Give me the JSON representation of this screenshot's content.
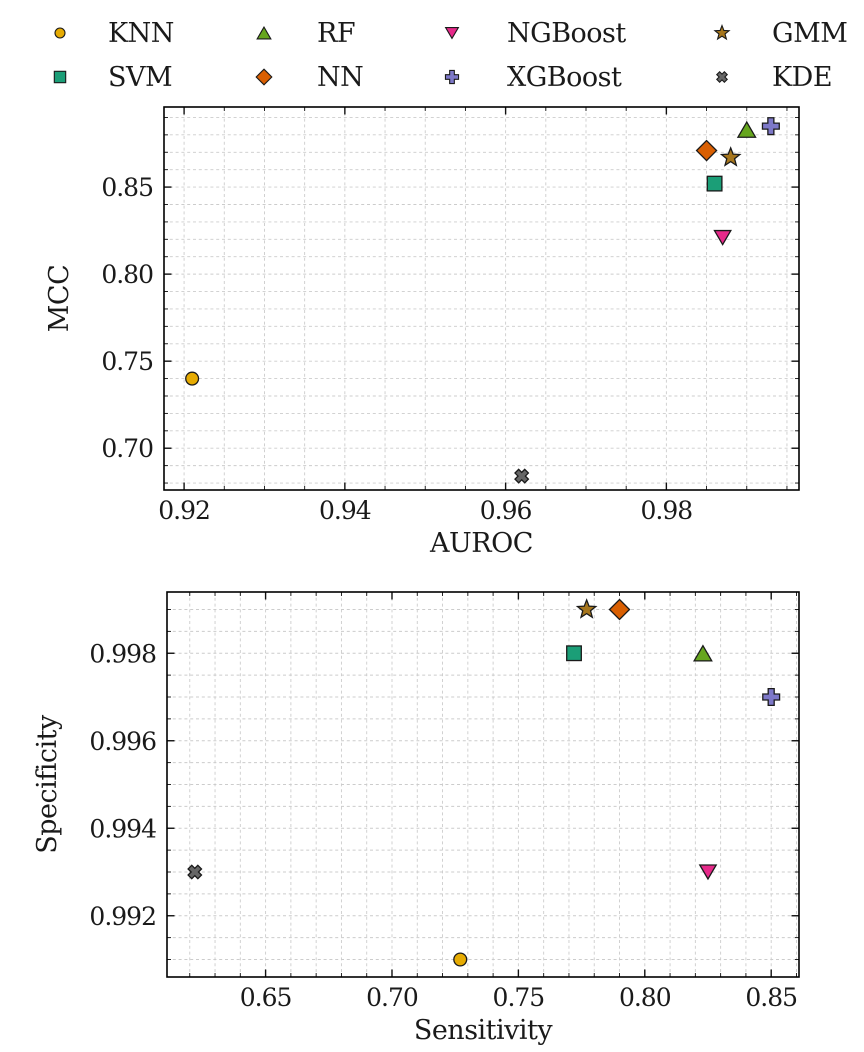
{
  "figure": {
    "background_color": "#ffffff",
    "text_color": "#1a1a1a",
    "grid_color": "#cccccc",
    "axis_border_color": "#000000",
    "marker_edge_color": "#1a1a1a"
  },
  "legend": {
    "position": "top",
    "items": [
      {
        "label": "KNN",
        "marker": "circle",
        "color": "#E6AB02"
      },
      {
        "label": "SVM",
        "marker": "square",
        "color": "#1B9E77"
      },
      {
        "label": "RF",
        "marker": "triangle-up",
        "color": "#66A61E"
      },
      {
        "label": "NN",
        "marker": "diamond",
        "color": "#D95F02"
      },
      {
        "label": "NGBoost",
        "marker": "triangle-down",
        "color": "#E7298A"
      },
      {
        "label": "XGBoost",
        "marker": "plus",
        "color": "#7D78C8"
      },
      {
        "label": "GMM",
        "marker": "star",
        "color": "#A6761D"
      },
      {
        "label": "KDE",
        "marker": "x",
        "color": "#666666"
      }
    ]
  },
  "chart_data": [
    {
      "type": "scatter",
      "xlabel": "AUROC",
      "ylabel": "MCC",
      "xlim": [
        0.9175,
        0.9965
      ],
      "ylim": [
        0.676,
        0.896
      ],
      "xticks": [
        0.92,
        0.94,
        0.96,
        0.98
      ],
      "xtick_labels": [
        "0.92",
        "0.94",
        "0.96",
        "0.98"
      ],
      "yticks": [
        0.7,
        0.75,
        0.8,
        0.85
      ],
      "ytick_labels": [
        "0.70",
        "0.75",
        "0.80",
        "0.85"
      ],
      "x_minor_step": 0.005,
      "y_minor_step": 0.01,
      "grid": true,
      "series": [
        {
          "name": "KNN",
          "marker": "circle",
          "color": "#E6AB02",
          "points": [
            [
              0.921,
              0.74
            ]
          ]
        },
        {
          "name": "SVM",
          "marker": "square",
          "color": "#1B9E77",
          "points": [
            [
              0.986,
              0.852
            ]
          ]
        },
        {
          "name": "RF",
          "marker": "triangle-up",
          "color": "#66A61E",
          "points": [
            [
              0.99,
              0.883
            ]
          ]
        },
        {
          "name": "NN",
          "marker": "diamond",
          "color": "#D95F02",
          "points": [
            [
              0.985,
              0.871
            ]
          ]
        },
        {
          "name": "NGBoost",
          "marker": "triangle-down",
          "color": "#E7298A",
          "points": [
            [
              0.987,
              0.821
            ]
          ]
        },
        {
          "name": "XGBoost",
          "marker": "plus",
          "color": "#7D78C8",
          "points": [
            [
              0.993,
              0.885
            ]
          ]
        },
        {
          "name": "GMM",
          "marker": "star",
          "color": "#A6761D",
          "points": [
            [
              0.988,
              0.867
            ]
          ]
        },
        {
          "name": "KDE",
          "marker": "x",
          "color": "#666666",
          "points": [
            [
              0.962,
              0.684
            ]
          ]
        }
      ]
    },
    {
      "type": "scatter",
      "xlabel": "Sensitivity",
      "ylabel": "Specificity",
      "xlim": [
        0.611,
        0.861
      ],
      "ylim": [
        0.9906,
        0.9994
      ],
      "xticks": [
        0.65,
        0.7,
        0.75,
        0.8,
        0.85
      ],
      "xtick_labels": [
        "0.65",
        "0.70",
        "0.75",
        "0.80",
        "0.85"
      ],
      "yticks": [
        0.992,
        0.994,
        0.996,
        0.998
      ],
      "ytick_labels": [
        "0.992",
        "0.994",
        "0.996",
        "0.998"
      ],
      "x_minor_step": 0.01,
      "y_minor_step": 0.0005,
      "grid": true,
      "series": [
        {
          "name": "KNN",
          "marker": "circle",
          "color": "#E6AB02",
          "points": [
            [
              0.727,
              0.991
            ]
          ]
        },
        {
          "name": "SVM",
          "marker": "square",
          "color": "#1B9E77",
          "points": [
            [
              0.772,
              0.998
            ]
          ]
        },
        {
          "name": "RF",
          "marker": "triangle-up",
          "color": "#66A61E",
          "points": [
            [
              0.823,
              0.998
            ]
          ]
        },
        {
          "name": "NN",
          "marker": "diamond",
          "color": "#D95F02",
          "points": [
            [
              0.79,
              0.999
            ]
          ]
        },
        {
          "name": "NGBoost",
          "marker": "triangle-down",
          "color": "#E7298A",
          "points": [
            [
              0.825,
              0.993
            ]
          ]
        },
        {
          "name": "XGBoost",
          "marker": "plus",
          "color": "#7D78C8",
          "points": [
            [
              0.85,
              0.997
            ]
          ]
        },
        {
          "name": "GMM",
          "marker": "star",
          "color": "#A6761D",
          "points": [
            [
              0.777,
              0.999
            ]
          ]
        },
        {
          "name": "KDE",
          "marker": "x",
          "color": "#666666",
          "points": [
            [
              0.622,
              0.993
            ]
          ]
        }
      ]
    }
  ]
}
